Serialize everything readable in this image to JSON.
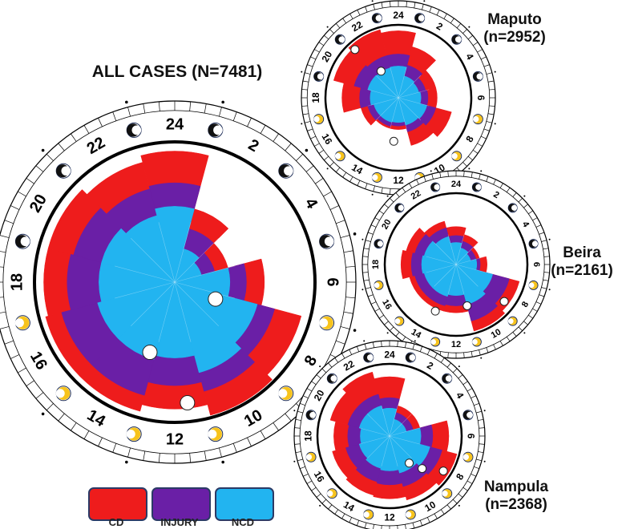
{
  "colors": {
    "CD": "#ee1c1c",
    "INJURY": "#6a1fa6",
    "NCD": "#22b4f0",
    "moon_gold": "#f7c31c",
    "ring": "#000000"
  },
  "legend": {
    "items": [
      {
        "label": "CD"
      },
      {
        "label": "INJURY"
      },
      {
        "label": "NCD"
      }
    ]
  },
  "chart_data": [
    {
      "id": "all",
      "type": "polar-area",
      "title": "ALL CASES (N=7481)",
      "hours": [
        "24",
        "2",
        "4",
        "6",
        "8",
        "10",
        "12",
        "14",
        "16",
        "18",
        "20",
        "22"
      ],
      "series": [
        {
          "name": "CD",
          "values": [
            0.95,
            0.55,
            0.4,
            0.65,
            0.95,
            1.0,
            0.92,
            0.97,
            0.97,
            0.95,
            0.95,
            0.9
          ]
        },
        {
          "name": "INJURY",
          "values": [
            0.72,
            0.4,
            0.3,
            0.52,
            0.75,
            0.82,
            0.75,
            0.85,
            0.85,
            0.78,
            0.76,
            0.7
          ]
        },
        {
          "name": "NCD",
          "values": [
            0.55,
            0.25,
            0.2,
            0.4,
            0.62,
            0.68,
            0.55,
            0.58,
            0.58,
            0.55,
            0.55,
            0.5
          ]
        }
      ],
      "markers": [
        {
          "hour": 7.5,
          "r": 0.32
        },
        {
          "hour": 11.6,
          "r": 0.88
        },
        {
          "hour": 13.3,
          "r": 0.54
        }
      ]
    },
    {
      "id": "maputo",
      "type": "polar-area",
      "title": "Maputo (n=2952)",
      "hours": [
        "24",
        "2",
        "4",
        "6",
        "8",
        "10",
        "12",
        "14",
        "16",
        "18",
        "20",
        "22"
      ],
      "series": [
        {
          "name": "CD",
          "values": [
            0.95,
            0.75,
            0.55,
            0.55,
            0.78,
            0.7,
            0.45,
            0.45,
            0.55,
            0.8,
            0.95,
            1.0
          ]
        },
        {
          "name": "INJURY",
          "values": [
            0.62,
            0.48,
            0.4,
            0.42,
            0.55,
            0.5,
            0.4,
            0.42,
            0.45,
            0.55,
            0.65,
            0.62
          ]
        },
        {
          "name": "NCD",
          "values": [
            0.45,
            0.32,
            0.3,
            0.32,
            0.42,
            0.4,
            0.35,
            0.36,
            0.36,
            0.4,
            0.45,
            0.44
          ]
        }
      ],
      "markers": [
        {
          "hour": 21.2,
          "r": 0.92
        },
        {
          "hour": 21.8,
          "r": 0.45
        },
        {
          "hour": 12.4,
          "r": 0.62
        }
      ]
    },
    {
      "id": "beira",
      "type": "polar-area",
      "title": "Beira (n=2161)",
      "hours": [
        "24",
        "2",
        "4",
        "6",
        "8",
        "10",
        "12",
        "14",
        "16",
        "18",
        "20",
        "22"
      ],
      "series": [
        {
          "name": "CD",
          "values": [
            0.55,
            0.45,
            0.35,
            0.45,
            0.95,
            1.0,
            0.7,
            0.7,
            0.7,
            0.8,
            0.75,
            0.65
          ]
        },
        {
          "name": "INJURY",
          "values": [
            0.42,
            0.35,
            0.3,
            0.35,
            0.8,
            0.85,
            0.6,
            0.62,
            0.62,
            0.65,
            0.62,
            0.55
          ]
        },
        {
          "name": "NCD",
          "values": [
            0.32,
            0.25,
            0.22,
            0.3,
            0.55,
            0.6,
            0.45,
            0.48,
            0.48,
            0.5,
            0.48,
            0.42
          ]
        }
      ],
      "markers": [
        {
          "hour": 8.5,
          "r": 0.88
        },
        {
          "hour": 11.0,
          "r": 0.62
        },
        {
          "hour": 13.6,
          "r": 0.74
        }
      ]
    },
    {
      "id": "nampula",
      "type": "polar-area",
      "title": "Nampula (n=2368)",
      "hours": [
        "24",
        "2",
        "4",
        "6",
        "8",
        "10",
        "12",
        "14",
        "16",
        "18",
        "20",
        "22"
      ],
      "series": [
        {
          "name": "CD",
          "values": [
            0.85,
            0.45,
            0.45,
            0.85,
            1.0,
            0.95,
            0.9,
            0.88,
            0.85,
            0.8,
            0.88,
            0.95
          ]
        },
        {
          "name": "INJURY",
          "values": [
            0.55,
            0.35,
            0.35,
            0.62,
            0.78,
            0.75,
            0.7,
            0.68,
            0.65,
            0.6,
            0.62,
            0.62
          ]
        },
        {
          "name": "NCD",
          "values": [
            0.4,
            0.25,
            0.25,
            0.45,
            0.6,
            0.55,
            0.5,
            0.48,
            0.45,
            0.42,
            0.45,
            0.45
          ]
        }
      ],
      "markers": [
        {
          "hour": 8.2,
          "r": 0.92
        },
        {
          "hour": 9.0,
          "r": 0.66
        },
        {
          "hour": 9.6,
          "r": 0.48
        }
      ]
    }
  ]
}
